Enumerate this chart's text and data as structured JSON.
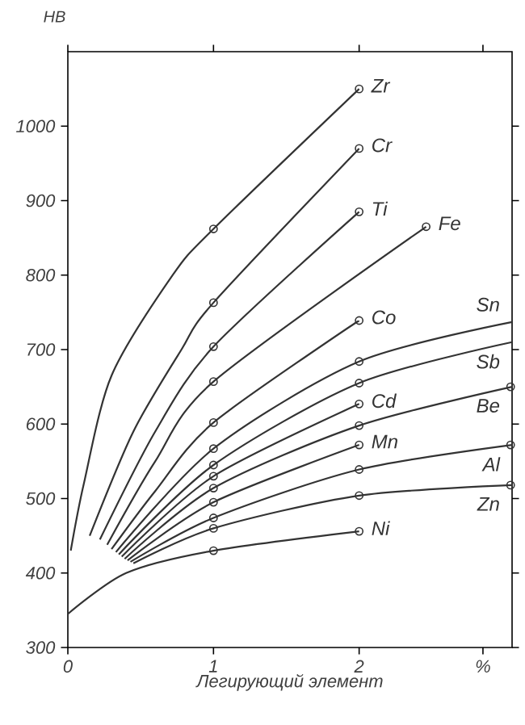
{
  "chart_data": {
    "type": "line",
    "ylabel": "HB",
    "xlabel": "Легирующий элемент",
    "xlim": [
      0,
      3.05
    ],
    "ylim": [
      300,
      1100
    ],
    "xticks": [
      0,
      1,
      2,
      {
        "value": 2.85,
        "label": "%"
      }
    ],
    "yticks": [
      300,
      400,
      500,
      600,
      700,
      800,
      900,
      1000
    ],
    "marker": "none",
    "grid": false,
    "series": [
      {
        "name": "Zr",
        "color": "#333333",
        "x": [
          0.02,
          0.11,
          0.3,
          0.72,
          1,
          2
        ],
        "values": [
          430,
          520,
          665,
          800,
          862,
          1050
        ]
      },
      {
        "name": "Cr",
        "color": "#333333",
        "x": [
          0.15,
          0.45,
          0.78,
          1,
          2
        ],
        "values": [
          450,
          590,
          700,
          763,
          970
        ]
      },
      {
        "name": "Ti",
        "color": "#333333",
        "x": [
          0.22,
          0.6,
          1,
          2
        ],
        "values": [
          445,
          590,
          704,
          885
        ]
      },
      {
        "name": "Fe",
        "color": "#333333",
        "x": [
          0.27,
          0.6,
          1,
          2.46
        ],
        "values": [
          438,
          550,
          657,
          865
        ]
      },
      {
        "name": "Co",
        "color": "#333333",
        "x": [
          0.3,
          0.6,
          1,
          2
        ],
        "values": [
          432,
          510,
          602,
          739
        ]
      },
      {
        "name": "Sn",
        "color": "#333333",
        "x": [
          0.33,
          1,
          2,
          3.05
        ],
        "values": [
          428,
          567,
          684,
          737
        ]
      },
      {
        "name": "Sb",
        "color": "#333333",
        "x": [
          0.35,
          1,
          2,
          3.05
        ],
        "values": [
          425,
          545,
          655,
          710
        ]
      },
      {
        "name": "Cd",
        "color": "#333333",
        "x": [
          0.37,
          1,
          2
        ],
        "values": [
          422,
          530,
          627
        ]
      },
      {
        "name": "Be",
        "color": "#333333",
        "x": [
          0.39,
          1,
          2,
          3.05
        ],
        "values": [
          419,
          514,
          598,
          650
        ]
      },
      {
        "name": "Mn",
        "color": "#333333",
        "x": [
          0.41,
          1,
          2
        ],
        "values": [
          417,
          495,
          572
        ]
      },
      {
        "name": "Al",
        "color": "#333333",
        "x": [
          0.43,
          1,
          2,
          3.05
        ],
        "values": [
          415,
          474,
          539,
          572
        ]
      },
      {
        "name": "Zn",
        "color": "#333333",
        "x": [
          0.45,
          1,
          2,
          3.05
        ],
        "values": [
          413,
          460,
          504,
          518
        ]
      },
      {
        "name": "Ni",
        "color": "#333333",
        "x": [
          0,
          0.4,
          1,
          2
        ],
        "values": [
          345,
          400,
          430,
          456
        ]
      },
      {
        "type": "scatter",
        "marker": "circle",
        "color": "#333333",
        "x": [
          1,
          1,
          1,
          1,
          1,
          1,
          1,
          1,
          1,
          1,
          1,
          1,
          1,
          2,
          2,
          2,
          2,
          2,
          2,
          2,
          2,
          2,
          2,
          2,
          2,
          2.46,
          3.04,
          3.04,
          3.04
        ],
        "values": [
          862,
          763,
          704,
          657,
          602,
          567,
          545,
          530,
          514,
          495,
          474,
          460,
          430,
          1050,
          970,
          885,
          739,
          684,
          655,
          627,
          598,
          572,
          539,
          504,
          456,
          865,
          650,
          572,
          518
        ]
      }
    ]
  }
}
